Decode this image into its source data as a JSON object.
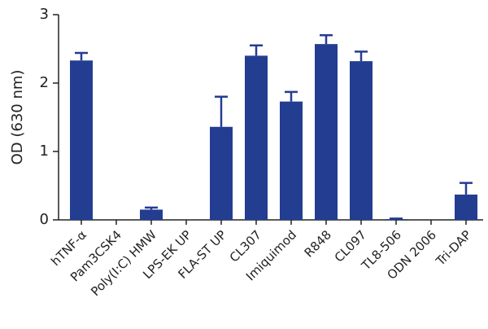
{
  "chart_data": {
    "type": "bar",
    "y_label": "OD (630 nm)",
    "categories": [
      "hTNF-α",
      "Pam3CSK4",
      "Poly(I:C) HMW",
      "LPS-EK UP",
      "FLA-ST UP",
      "CL307",
      "Imiquimod",
      "R848",
      "CL097",
      "TL8-506",
      "ODN 2006",
      "Tri-DAP"
    ],
    "values": [
      2.33,
      0,
      0.15,
      0,
      1.36,
      2.4,
      1.73,
      2.57,
      2.32,
      0.01,
      0,
      0.37
    ],
    "errors": [
      0.11,
      null,
      0.03,
      null,
      0.44,
      0.15,
      0.14,
      0.13,
      0.14,
      0.01,
      null,
      0.17
    ],
    "color": "#233d91",
    "ylim": [
      0,
      3
    ],
    "yticks": [
      0,
      1,
      2,
      3
    ]
  }
}
